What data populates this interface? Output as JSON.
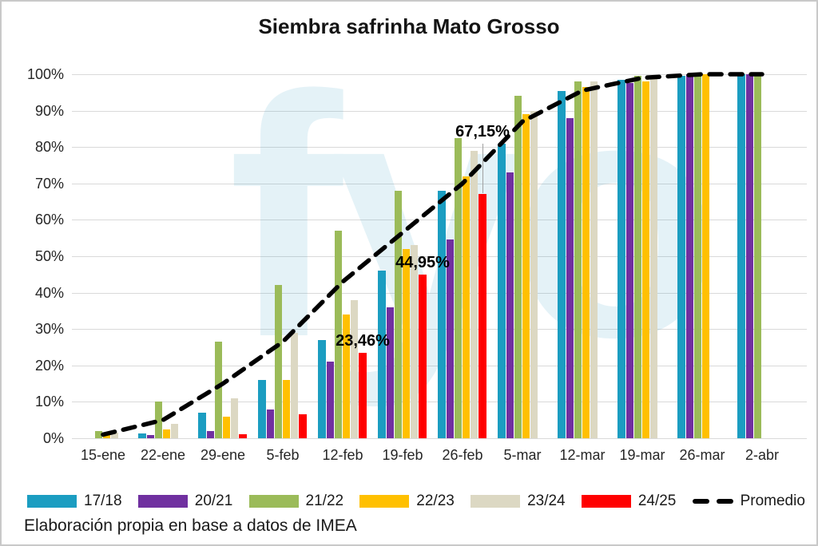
{
  "watermark_text": "fyo",
  "chart_data": {
    "type": "bar",
    "title": "Siembra safrinha Mato Grosso",
    "source_note": "Elaboración propia en base a datos de IMEA",
    "categories": [
      "15-ene",
      "22-ene",
      "29-ene",
      "5-feb",
      "12-feb",
      "19-feb",
      "26-feb",
      "5-mar",
      "12-mar",
      "19-mar",
      "26-mar",
      "2-abr"
    ],
    "y_ticks": [
      "0%",
      "10%",
      "20%",
      "30%",
      "40%",
      "50%",
      "60%",
      "70%",
      "80%",
      "90%",
      "100%"
    ],
    "ylim": [
      0,
      100
    ],
    "grid": true,
    "legend_position": "bottom",
    "series": [
      {
        "name": "17/18",
        "color": "#1b9dc1",
        "values": [
          null,
          1.3,
          7,
          16,
          27,
          46,
          68,
          81,
          95.5,
          98.5,
          99.5,
          100
        ]
      },
      {
        "name": "20/21",
        "color": "#7030a0",
        "values": [
          null,
          0.8,
          2,
          8,
          21,
          36,
          54.5,
          73,
          88,
          97.5,
          100,
          100
        ]
      },
      {
        "name": "21/22",
        "color": "#9bbb59",
        "values": [
          2,
          10,
          26.5,
          42,
          57,
          68,
          82.5,
          94,
          98,
          99.5,
          100,
          100
        ]
      },
      {
        "name": "22/23",
        "color": "#ffc000",
        "values": [
          1,
          2.5,
          6,
          16,
          34,
          52,
          72,
          89,
          96.5,
          98,
          100,
          null
        ]
      },
      {
        "name": "23/24",
        "color": "#dcd8c3",
        "values": [
          1.5,
          4,
          11,
          29,
          38,
          53,
          79,
          90,
          98,
          99,
          null,
          null
        ]
      },
      {
        "name": "24/25",
        "color": "#ff0000",
        "values": [
          null,
          null,
          1,
          6.5,
          23.46,
          44.95,
          67.15,
          null,
          null,
          null,
          null,
          null
        ]
      }
    ],
    "line_series": {
      "name": "Promedio",
      "color": "#000000",
      "style": "dashed",
      "values": [
        1,
        5,
        15,
        26.5,
        43,
        56.5,
        70,
        87,
        95.5,
        99,
        100,
        100
      ]
    },
    "annotations": [
      {
        "text": "23,46%",
        "series": "24/25",
        "category_index": 4,
        "raised": false
      },
      {
        "text": "44,95%",
        "series": "24/25",
        "category_index": 5,
        "raised": false
      },
      {
        "text": "67,15%",
        "series": "24/25",
        "category_index": 6,
        "raised": true
      }
    ]
  }
}
